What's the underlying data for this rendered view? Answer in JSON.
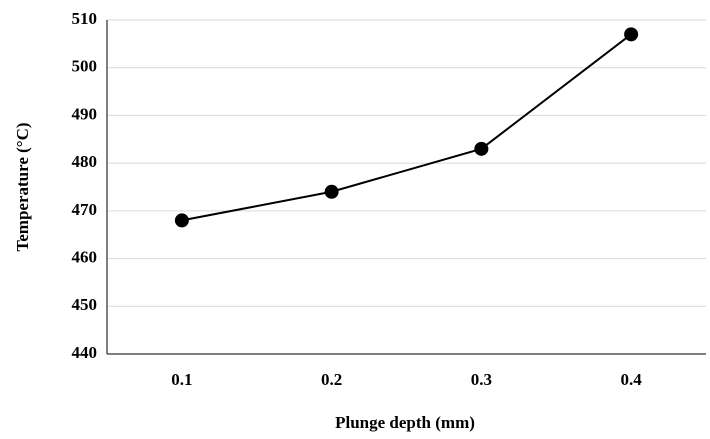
{
  "chart_data": {
    "type": "line",
    "x_label": "Plunge depth (mm)",
    "y_label": "Temperature (°C)",
    "categories": [
      "0.1",
      "0.2",
      "0.3",
      "0.4"
    ],
    "series": [
      {
        "name": "Temperature",
        "color": "#000000",
        "values": [
          468,
          474,
          483,
          507
        ]
      }
    ],
    "ylim": [
      440,
      510
    ],
    "yticks": [
      440,
      450,
      460,
      470,
      480,
      490,
      500,
      510
    ],
    "grid": true
  }
}
